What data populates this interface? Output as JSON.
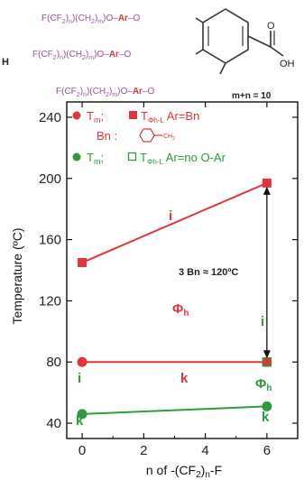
{
  "header": {
    "left_fragment": "H",
    "chain_prefix": "F(CF",
    "sub_2": "2",
    "sub_n": "n",
    "sub_m": "m",
    "chain_mid": ")(CH",
    "chain_end": ")O–",
    "ar": "Ar",
    "o_link": "–O",
    "acid_o": "O",
    "acid_oh": "OH",
    "constraint": "m+n = 10"
  },
  "legend": {
    "red_line1_prefix": "T",
    "red_line1_sub1": "m",
    "red_line1_sep": ";",
    "red_line1_t": "T",
    "red_line1_sub2": "Φh-L",
    "red_line1_rest": " Ar=Bn",
    "red_line2": "Bn :",
    "red_line2_ch2": "CH",
    "red_line2_ch2_sub": "2",
    "green_line_prefix": "T",
    "green_line_sub1": "m",
    "green_line_sep": ";",
    "green_line_t": "T",
    "green_line_sub2": "Φh-L",
    "green_line_rest": " Ar=no O-Ar"
  },
  "annotations": {
    "red_i": "i",
    "red_phi": "Φ",
    "red_phi_sub": "h",
    "red_k": "k",
    "gap_label": "3 Bn ≈ 120ºC",
    "right_i": "i",
    "green_i": "i",
    "green_phi": "Φ",
    "green_phi_sub": "h",
    "green_k_left": "k",
    "green_k_right": "k"
  },
  "colors": {
    "red": "#e0353a",
    "green": "#2f9a3e",
    "purple": "#9b4fa6"
  },
  "chart_data": {
    "type": "line",
    "xlabel_prefix": "n of -(CF",
    "xlabel_sub_2": "2",
    "xlabel_close": ")",
    "xlabel_sub_n": "n",
    "xlabel_suffix": "-F",
    "ylabel": "Temperature (ºC)",
    "xlim": [
      -0.5,
      7
    ],
    "ylim": [
      30,
      250
    ],
    "xticks": [
      0,
      2,
      4,
      6
    ],
    "yticks": [
      40,
      80,
      120,
      160,
      200,
      240
    ],
    "series": [
      {
        "color": "#e0353a",
        "marker": "square-filled",
        "x": [
          0,
          6
        ],
        "y": [
          145,
          197
        ]
      },
      {
        "color": "#e0353a",
        "marker": "circle-filled",
        "x": [
          0,
          6
        ],
        "y": [
          80,
          80
        ]
      },
      {
        "color": "#2f9a3e",
        "marker": "circle-filled",
        "x": [
          0,
          6
        ],
        "y": [
          46,
          51
        ]
      }
    ],
    "double_arrow": {
      "x": 6,
      "y_from": 197,
      "y_to": 80
    }
  }
}
